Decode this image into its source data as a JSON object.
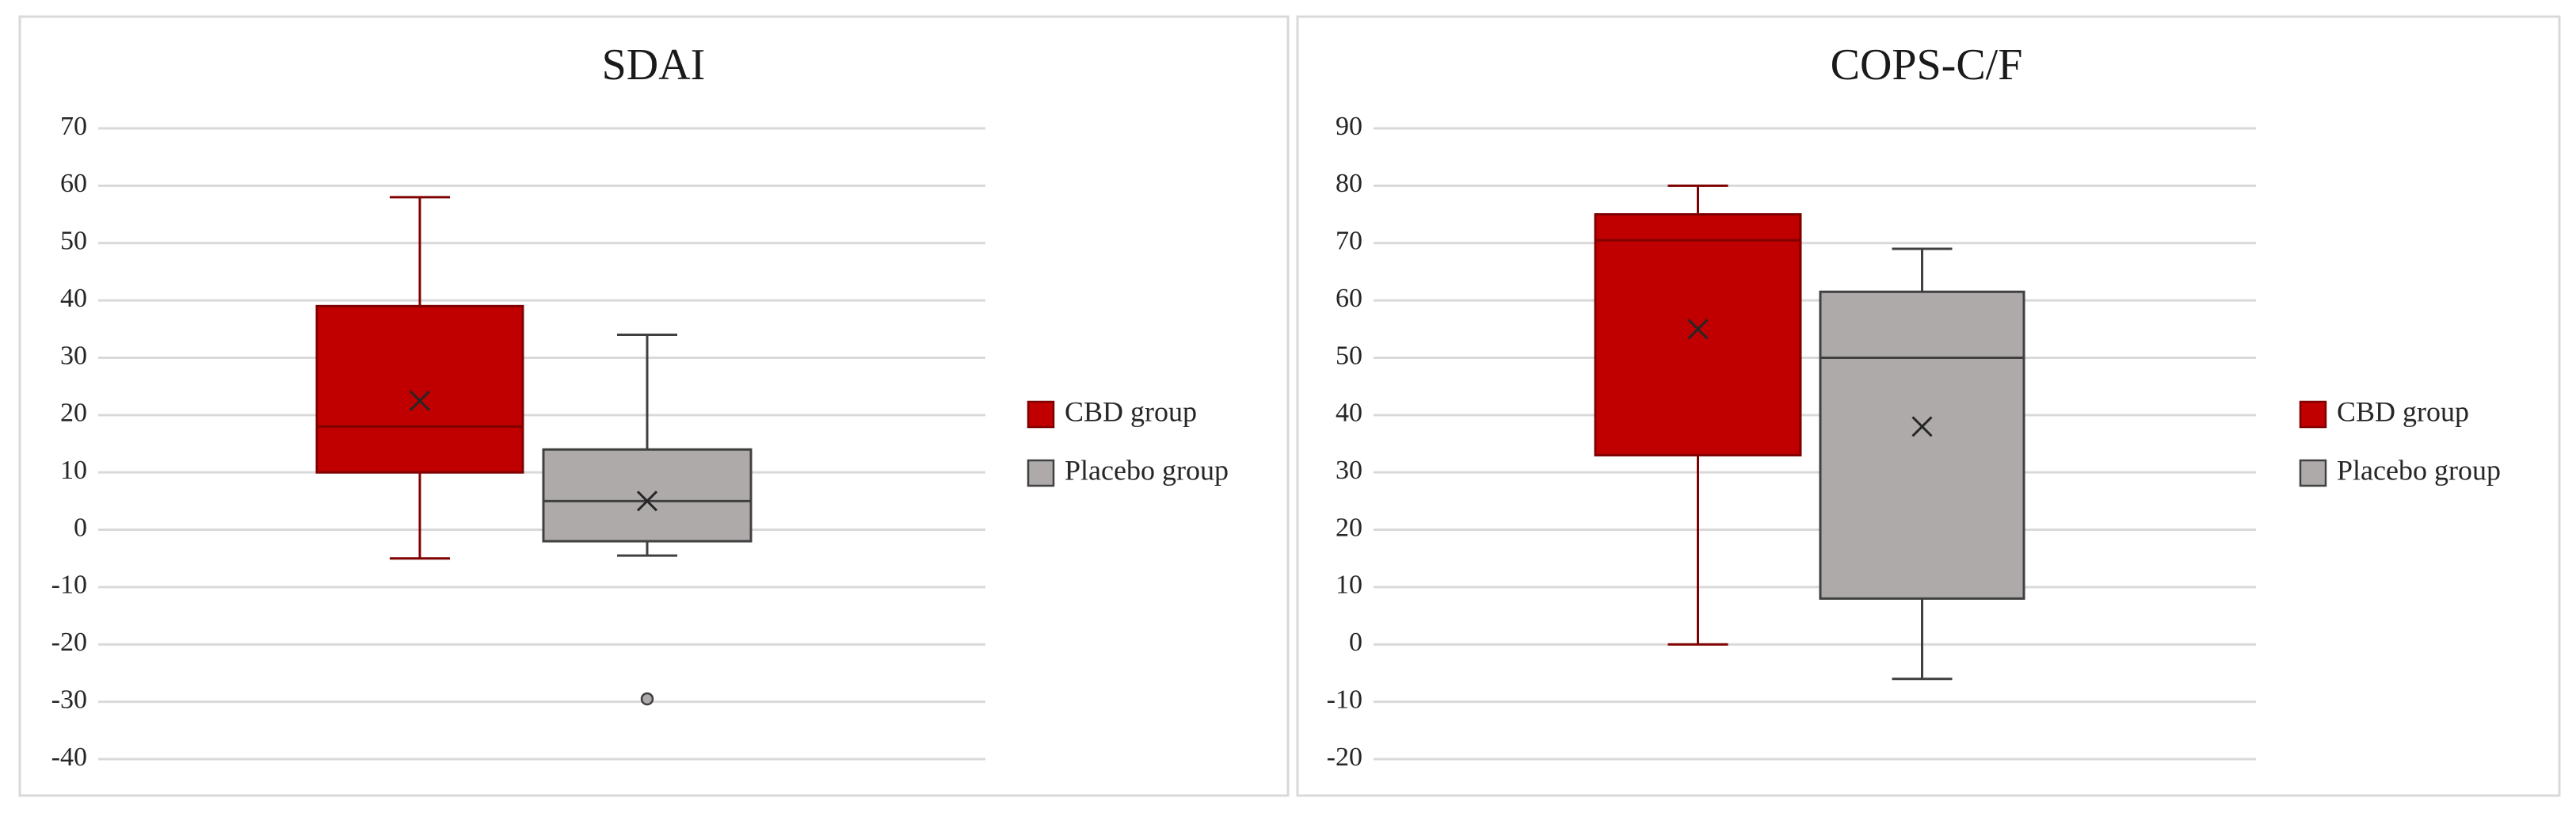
{
  "chart_data": [
    {
      "type": "box",
      "title": "SDAI",
      "ylim": [
        -40,
        70
      ],
      "yticks": [
        -40,
        -30,
        -20,
        -10,
        0,
        10,
        20,
        30,
        40,
        50,
        60,
        70
      ],
      "grid": true,
      "legend": "right",
      "series": [
        {
          "name": "CBD group",
          "color": "#c00000",
          "edge_color": "#7f0000",
          "min": -5,
          "q1": 10,
          "median": 18,
          "q3": 39,
          "max": 58,
          "mean": 22.5
        },
        {
          "name": "Placebo group",
          "color": "#aeaaaa",
          "edge_color": "#404040",
          "min": -4.5,
          "q1": -2,
          "median": 5,
          "q3": 14,
          "max": 34,
          "mean": 5,
          "outliers": [
            -29.5
          ]
        }
      ]
    },
    {
      "type": "box",
      "title": "COPS-C/F",
      "ylim": [
        -20,
        90
      ],
      "yticks": [
        -20,
        -10,
        0,
        10,
        20,
        30,
        40,
        50,
        60,
        70,
        80,
        90
      ],
      "grid": true,
      "legend": "right",
      "series": [
        {
          "name": "CBD group",
          "color": "#c00000",
          "edge_color": "#7f0000",
          "min": 0,
          "q1": 33,
          "median": 70.5,
          "q3": 75,
          "max": 80,
          "mean": 55
        },
        {
          "name": "Placebo group",
          "color": "#aeaaaa",
          "edge_color": "#404040",
          "min": -6,
          "q1": 8,
          "median": 50,
          "q3": 61.5,
          "max": 69,
          "mean": 38
        }
      ]
    }
  ]
}
